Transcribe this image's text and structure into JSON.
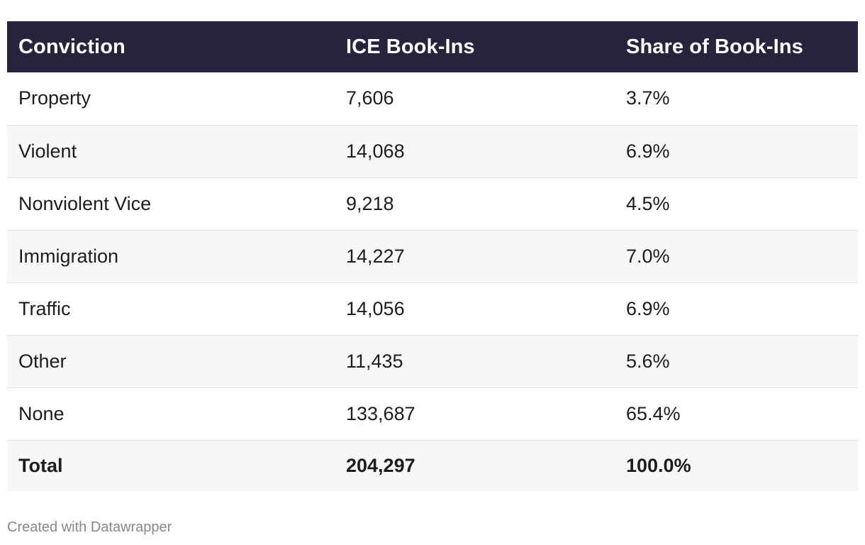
{
  "chart_data": {
    "type": "table",
    "columns": [
      "Conviction",
      "ICE Book-Ins",
      "Share of Book-Ins"
    ],
    "rows": [
      {
        "conviction": "Property",
        "book_ins": "7,606",
        "share": "3.7%"
      },
      {
        "conviction": "Violent",
        "book_ins": "14,068",
        "share": "6.9%"
      },
      {
        "conviction": "Nonviolent Vice",
        "book_ins": "9,218",
        "share": "4.5%"
      },
      {
        "conviction": "Immigration",
        "book_ins": "14,227",
        "share": "7.0%"
      },
      {
        "conviction": "Traffic",
        "book_ins": "14,056",
        "share": "6.9%"
      },
      {
        "conviction": "Other",
        "book_ins": "11,435",
        "share": "5.6%"
      },
      {
        "conviction": "None",
        "book_ins": "133,687",
        "share": "65.4%"
      }
    ],
    "total": {
      "conviction": "Total",
      "book_ins": "204,297",
      "share": "100.0%"
    }
  },
  "footer": {
    "credit": "Created with Datawrapper"
  },
  "colors": {
    "header_bg": "#27233d",
    "header_text": "#ffffff",
    "stripe": "#f7f7f7",
    "footer_text": "#888888"
  }
}
